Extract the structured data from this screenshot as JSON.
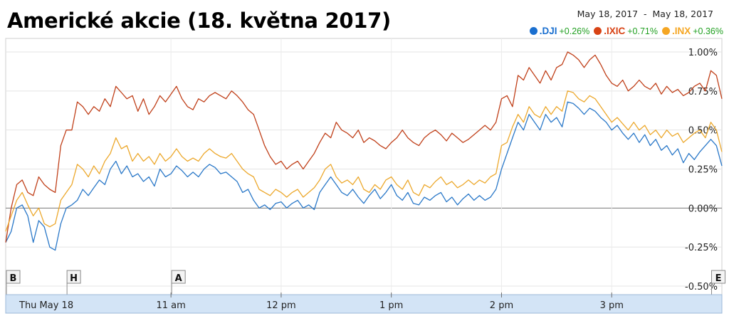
{
  "title": "Americké akcie (18. května 2017)",
  "date_range": "May 18, 2017  -  May 18, 2017",
  "legend": [
    {
      "symbol": ".DJI",
      "change": "+0.26%",
      "color": "#1a6fcf"
    },
    {
      "symbol": ".IXIC",
      "change": "+0.71%",
      "color": "#d84315"
    },
    {
      "symbol": ".INX",
      "change": "+0.36%",
      "color": "#f5a623"
    }
  ],
  "chart_data": {
    "type": "line",
    "x_unit": "time of day (hours, 24h)",
    "xlim": [
      9.5,
      16.0
    ],
    "ylim": [
      -0.5,
      1.0
    ],
    "y_ticks": [
      "1.00%",
      "0.75%",
      "0.50%",
      "0.25%",
      "0.00%",
      "-0.25%",
      "-0.50%"
    ],
    "x_tick_labels": [
      "Thu May 18",
      "11 am",
      "12 pm",
      "1 pm",
      "2 pm",
      "3 pm"
    ],
    "x_tick_values": [
      9.5,
      11,
      12,
      13,
      14,
      15
    ],
    "markers": [
      {
        "label": "B",
        "x": 9.5
      },
      {
        "label": "H",
        "x": 10.05
      },
      {
        "label": "A",
        "x": 11.0
      },
      {
        "label": "E",
        "x": 15.9
      }
    ],
    "series": [
      {
        "name": ".DJI",
        "color": "#2a78c8",
        "x": [
          9.5,
          9.55,
          9.6,
          9.65,
          9.7,
          9.75,
          9.8,
          9.85,
          9.9,
          9.95,
          10.0,
          10.05,
          10.1,
          10.15,
          10.2,
          10.25,
          10.3,
          10.35,
          10.4,
          10.45,
          10.5,
          10.55,
          10.6,
          10.65,
          10.7,
          10.75,
          10.8,
          10.85,
          10.9,
          10.95,
          11.0,
          11.05,
          11.1,
          11.15,
          11.2,
          11.25,
          11.3,
          11.35,
          11.4,
          11.45,
          11.5,
          11.55,
          11.6,
          11.65,
          11.7,
          11.75,
          11.8,
          11.85,
          11.9,
          11.95,
          12.0,
          12.05,
          12.1,
          12.15,
          12.2,
          12.25,
          12.3,
          12.35,
          12.4,
          12.45,
          12.5,
          12.55,
          12.6,
          12.65,
          12.7,
          12.75,
          12.8,
          12.85,
          12.9,
          12.95,
          13.0,
          13.05,
          13.1,
          13.15,
          13.2,
          13.25,
          13.3,
          13.35,
          13.4,
          13.45,
          13.5,
          13.55,
          13.6,
          13.65,
          13.7,
          13.75,
          13.8,
          13.85,
          13.9,
          13.95,
          14.0,
          14.05,
          14.1,
          14.15,
          14.2,
          14.25,
          14.3,
          14.35,
          14.4,
          14.45,
          14.5,
          14.55,
          14.6,
          14.65,
          14.7,
          14.75,
          14.8,
          14.85,
          14.9,
          14.95,
          15.0,
          15.05,
          15.1,
          15.15,
          15.2,
          15.25,
          15.3,
          15.35,
          15.4,
          15.45,
          15.5,
          15.55,
          15.6,
          15.65,
          15.7,
          15.75,
          15.8,
          15.85,
          15.9,
          15.95,
          16.0
        ],
        "values": [
          -0.22,
          -0.15,
          0.0,
          0.02,
          -0.05,
          -0.22,
          -0.08,
          -0.12,
          -0.25,
          -0.27,
          -0.1,
          0.0,
          0.02,
          0.05,
          0.12,
          0.08,
          0.13,
          0.18,
          0.15,
          0.25,
          0.3,
          0.22,
          0.27,
          0.2,
          0.22,
          0.17,
          0.2,
          0.14,
          0.25,
          0.2,
          0.22,
          0.27,
          0.24,
          0.2,
          0.23,
          0.2,
          0.25,
          0.28,
          0.26,
          0.22,
          0.23,
          0.2,
          0.17,
          0.1,
          0.12,
          0.05,
          0.0,
          0.02,
          -0.01,
          0.03,
          0.04,
          0.0,
          0.03,
          0.05,
          0.0,
          0.02,
          -0.01,
          0.1,
          0.15,
          0.2,
          0.15,
          0.1,
          0.08,
          0.12,
          0.07,
          0.03,
          0.08,
          0.12,
          0.06,
          0.1,
          0.15,
          0.08,
          0.05,
          0.1,
          0.03,
          0.02,
          0.07,
          0.05,
          0.08,
          0.1,
          0.04,
          0.07,
          0.02,
          0.06,
          0.09,
          0.05,
          0.08,
          0.05,
          0.07,
          0.12,
          0.25,
          0.35,
          0.45,
          0.55,
          0.5,
          0.6,
          0.55,
          0.5,
          0.6,
          0.55,
          0.58,
          0.52,
          0.68,
          0.67,
          0.64,
          0.6,
          0.64,
          0.62,
          0.58,
          0.55,
          0.5,
          0.53,
          0.48,
          0.44,
          0.48,
          0.42,
          0.47,
          0.4,
          0.44,
          0.37,
          0.4,
          0.34,
          0.38,
          0.29,
          0.35,
          0.31,
          0.36,
          0.4,
          0.44,
          0.4,
          0.27
        ]
      },
      {
        "name": ".IXIC",
        "color": "#c0401a",
        "x": [
          9.5,
          9.55,
          9.6,
          9.65,
          9.7,
          9.75,
          9.8,
          9.85,
          9.9,
          9.95,
          10.0,
          10.05,
          10.1,
          10.15,
          10.2,
          10.25,
          10.3,
          10.35,
          10.4,
          10.45,
          10.5,
          10.55,
          10.6,
          10.65,
          10.7,
          10.75,
          10.8,
          10.85,
          10.9,
          10.95,
          11.0,
          11.05,
          11.1,
          11.15,
          11.2,
          11.25,
          11.3,
          11.35,
          11.4,
          11.45,
          11.5,
          11.55,
          11.6,
          11.65,
          11.7,
          11.75,
          11.8,
          11.85,
          11.9,
          11.95,
          12.0,
          12.05,
          12.1,
          12.15,
          12.2,
          12.25,
          12.3,
          12.35,
          12.4,
          12.45,
          12.5,
          12.55,
          12.6,
          12.65,
          12.7,
          12.75,
          12.8,
          12.85,
          12.9,
          12.95,
          13.0,
          13.05,
          13.1,
          13.15,
          13.2,
          13.25,
          13.3,
          13.35,
          13.4,
          13.45,
          13.5,
          13.55,
          13.6,
          13.65,
          13.7,
          13.75,
          13.8,
          13.85,
          13.9,
          13.95,
          14.0,
          14.05,
          14.1,
          14.15,
          14.2,
          14.25,
          14.3,
          14.35,
          14.4,
          14.45,
          14.5,
          14.55,
          14.6,
          14.65,
          14.7,
          14.75,
          14.8,
          14.85,
          14.9,
          14.95,
          15.0,
          15.05,
          15.1,
          15.15,
          15.2,
          15.25,
          15.3,
          15.35,
          15.4,
          15.45,
          15.5,
          15.55,
          15.6,
          15.65,
          15.7,
          15.75,
          15.8,
          15.85,
          15.9,
          15.95,
          16.0
        ],
        "values": [
          -0.22,
          0.0,
          0.15,
          0.18,
          0.1,
          0.08,
          0.2,
          0.15,
          0.12,
          0.1,
          0.4,
          0.5,
          0.5,
          0.68,
          0.65,
          0.6,
          0.65,
          0.62,
          0.7,
          0.65,
          0.78,
          0.74,
          0.7,
          0.72,
          0.62,
          0.7,
          0.6,
          0.65,
          0.72,
          0.68,
          0.73,
          0.78,
          0.7,
          0.65,
          0.63,
          0.7,
          0.68,
          0.72,
          0.74,
          0.72,
          0.7,
          0.75,
          0.72,
          0.68,
          0.63,
          0.6,
          0.5,
          0.4,
          0.33,
          0.28,
          0.3,
          0.25,
          0.28,
          0.3,
          0.25,
          0.3,
          0.35,
          0.42,
          0.48,
          0.45,
          0.55,
          0.5,
          0.48,
          0.45,
          0.5,
          0.42,
          0.45,
          0.43,
          0.4,
          0.38,
          0.42,
          0.45,
          0.5,
          0.45,
          0.42,
          0.4,
          0.45,
          0.48,
          0.5,
          0.47,
          0.43,
          0.48,
          0.45,
          0.42,
          0.44,
          0.47,
          0.5,
          0.53,
          0.5,
          0.55,
          0.7,
          0.72,
          0.65,
          0.85,
          0.82,
          0.9,
          0.85,
          0.8,
          0.88,
          0.82,
          0.9,
          0.92,
          1.0,
          0.98,
          0.95,
          0.9,
          0.95,
          0.98,
          0.92,
          0.85,
          0.8,
          0.78,
          0.82,
          0.75,
          0.78,
          0.82,
          0.78,
          0.76,
          0.8,
          0.73,
          0.78,
          0.74,
          0.76,
          0.72,
          0.74,
          0.78,
          0.8,
          0.75,
          0.88,
          0.85,
          0.7
        ]
      },
      {
        "name": ".INX",
        "color": "#eca82c",
        "x": [
          9.5,
          9.55,
          9.6,
          9.65,
          9.7,
          9.75,
          9.8,
          9.85,
          9.9,
          9.95,
          10.0,
          10.05,
          10.1,
          10.15,
          10.2,
          10.25,
          10.3,
          10.35,
          10.4,
          10.45,
          10.5,
          10.55,
          10.6,
          10.65,
          10.7,
          10.75,
          10.8,
          10.85,
          10.9,
          10.95,
          11.0,
          11.05,
          11.1,
          11.15,
          11.2,
          11.25,
          11.3,
          11.35,
          11.4,
          11.45,
          11.5,
          11.55,
          11.6,
          11.65,
          11.7,
          11.75,
          11.8,
          11.85,
          11.9,
          11.95,
          12.0,
          12.05,
          12.1,
          12.15,
          12.2,
          12.25,
          12.3,
          12.35,
          12.4,
          12.45,
          12.5,
          12.55,
          12.6,
          12.65,
          12.7,
          12.75,
          12.8,
          12.85,
          12.9,
          12.95,
          13.0,
          13.05,
          13.1,
          13.15,
          13.2,
          13.25,
          13.3,
          13.35,
          13.4,
          13.45,
          13.5,
          13.55,
          13.6,
          13.65,
          13.7,
          13.75,
          13.8,
          13.85,
          13.9,
          13.95,
          14.0,
          14.05,
          14.1,
          14.15,
          14.2,
          14.25,
          14.3,
          14.35,
          14.4,
          14.45,
          14.5,
          14.55,
          14.6,
          14.65,
          14.7,
          14.75,
          14.8,
          14.85,
          14.9,
          14.95,
          15.0,
          15.05,
          15.1,
          15.15,
          15.2,
          15.25,
          15.3,
          15.35,
          15.4,
          15.45,
          15.5,
          15.55,
          15.6,
          15.65,
          15.7,
          15.75,
          15.8,
          15.85,
          15.9,
          15.95,
          16.0
        ],
        "values": [
          -0.15,
          -0.05,
          0.05,
          0.1,
          0.02,
          -0.05,
          0.0,
          -0.1,
          -0.12,
          -0.1,
          0.05,
          0.1,
          0.15,
          0.28,
          0.25,
          0.2,
          0.27,
          0.22,
          0.3,
          0.35,
          0.45,
          0.38,
          0.4,
          0.3,
          0.35,
          0.3,
          0.33,
          0.28,
          0.35,
          0.3,
          0.33,
          0.38,
          0.33,
          0.3,
          0.32,
          0.3,
          0.35,
          0.38,
          0.35,
          0.33,
          0.32,
          0.35,
          0.3,
          0.25,
          0.22,
          0.2,
          0.12,
          0.1,
          0.08,
          0.12,
          0.1,
          0.07,
          0.1,
          0.12,
          0.07,
          0.1,
          0.13,
          0.18,
          0.25,
          0.28,
          0.2,
          0.16,
          0.18,
          0.15,
          0.2,
          0.12,
          0.1,
          0.15,
          0.12,
          0.18,
          0.2,
          0.15,
          0.12,
          0.18,
          0.1,
          0.08,
          0.15,
          0.13,
          0.17,
          0.2,
          0.15,
          0.17,
          0.13,
          0.15,
          0.18,
          0.15,
          0.18,
          0.16,
          0.2,
          0.22,
          0.4,
          0.42,
          0.52,
          0.6,
          0.55,
          0.65,
          0.6,
          0.58,
          0.65,
          0.6,
          0.65,
          0.62,
          0.75,
          0.74,
          0.7,
          0.68,
          0.72,
          0.7,
          0.65,
          0.6,
          0.55,
          0.58,
          0.54,
          0.5,
          0.55,
          0.5,
          0.53,
          0.47,
          0.5,
          0.45,
          0.5,
          0.46,
          0.48,
          0.42,
          0.45,
          0.48,
          0.5,
          0.45,
          0.55,
          0.5,
          0.36
        ]
      }
    ]
  }
}
